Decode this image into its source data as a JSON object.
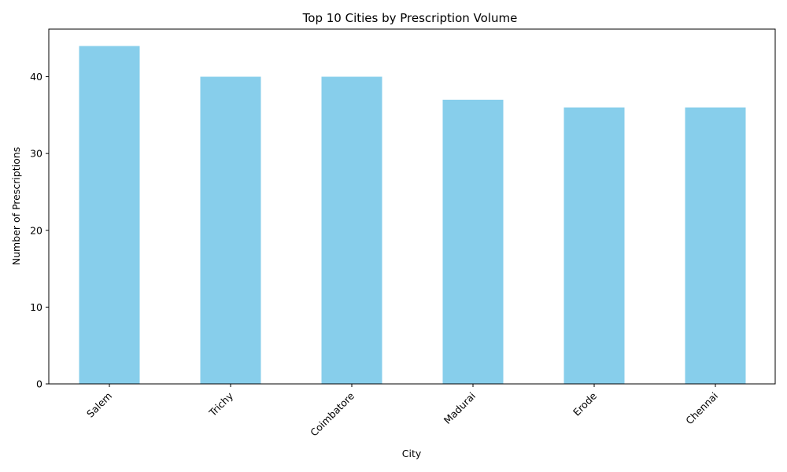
{
  "chart_data": {
    "type": "bar",
    "title": "Top 10 Cities by Prescription Volume",
    "xlabel": "City",
    "ylabel": "Number of Prescriptions",
    "categories": [
      "Salem",
      "Trichy",
      "Coimbatore",
      "Madurai",
      "Erode",
      "Chennai"
    ],
    "values": [
      44,
      40,
      40,
      37,
      36,
      36
    ],
    "ylim": [
      0,
      46.2
    ],
    "yticks": [
      0,
      10,
      20,
      30,
      40
    ],
    "ytick_labels": [
      "0",
      "10",
      "20",
      "30",
      "40"
    ],
    "bar_color": "#87ceeb",
    "grid": false,
    "xtick_rotation_deg": 45
  }
}
